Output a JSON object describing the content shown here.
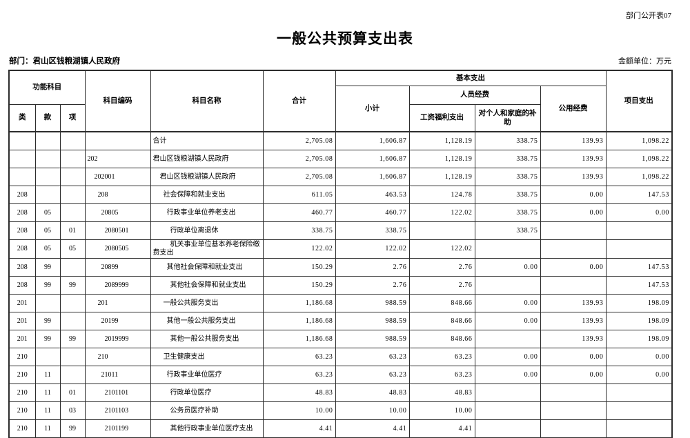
{
  "page": {
    "doc_label": "部门公开表07",
    "title": "一般公共预算支出表",
    "department_label": "部门：君山区钱粮湖镇人民政府",
    "unit_label": "金额单位：万元"
  },
  "colors": {
    "background": "#ffffff",
    "border": "#2c2c2c",
    "text": "#000000"
  },
  "table": {
    "headers": {
      "functional_subject": "功能科目",
      "lei": "类",
      "kuan": "款",
      "xiang": "项",
      "subject_code": "科目编码",
      "subject_name": "科目名称",
      "total": "合计",
      "basic_expenditure": "基本支出",
      "subtotal": "小计",
      "personnel_funds": "人员经费",
      "wage_welfare": "工资福利支出",
      "individual_family": "对个人和家庭的补助",
      "public_funds": "公用经费",
      "project_expenditure": "项目支出"
    },
    "rows": [
      {
        "lei": "",
        "kuan": "",
        "xiang": "",
        "code": "",
        "level": 0,
        "name": "合计",
        "total": "2,705.08",
        "subtotal": "1,606.87",
        "wage": "1,128.19",
        "family": "338.75",
        "public": "139.93",
        "project": "1,098.22"
      },
      {
        "lei": "",
        "kuan": "",
        "xiang": "",
        "code": "202",
        "level": 0,
        "name": "君山区钱粮湖镇人民政府",
        "total": "2,705.08",
        "subtotal": "1,606.87",
        "wage": "1,128.19",
        "family": "338.75",
        "public": "139.93",
        "project": "1,098.22"
      },
      {
        "lei": "",
        "kuan": "",
        "xiang": "",
        "code": "202001",
        "level": 1,
        "name": "君山区钱粮湖镇人民政府",
        "total": "2,705.08",
        "subtotal": "1,606.87",
        "wage": "1,128.19",
        "family": "338.75",
        "public": "139.93",
        "project": "1,098.22"
      },
      {
        "lei": "208",
        "kuan": "",
        "xiang": "",
        "code": "208",
        "level": 2,
        "name": "社会保障和就业支出",
        "total": "611.05",
        "subtotal": "463.53",
        "wage": "124.78",
        "family": "338.75",
        "public": "0.00",
        "project": "147.53"
      },
      {
        "lei": "208",
        "kuan": "05",
        "xiang": "",
        "code": "20805",
        "level": 3,
        "name": "行政事业单位养老支出",
        "total": "460.77",
        "subtotal": "460.77",
        "wage": "122.02",
        "family": "338.75",
        "public": "0.00",
        "project": "0.00"
      },
      {
        "lei": "208",
        "kuan": "05",
        "xiang": "01",
        "code": "2080501",
        "level": 4,
        "name": "行政单位离退休",
        "total": "338.75",
        "subtotal": "338.75",
        "wage": "",
        "family": "338.75",
        "public": "",
        "project": ""
      },
      {
        "lei": "208",
        "kuan": "05",
        "xiang": "05",
        "code": "2080505",
        "level": 4,
        "name": "机关事业单位基本养老保险缴费支出",
        "total": "122.02",
        "subtotal": "122.02",
        "wage": "122.02",
        "family": "",
        "public": "",
        "project": ""
      },
      {
        "lei": "208",
        "kuan": "99",
        "xiang": "",
        "code": "20899",
        "level": 3,
        "name": "其他社会保障和就业支出",
        "total": "150.29",
        "subtotal": "2.76",
        "wage": "2.76",
        "family": "0.00",
        "public": "0.00",
        "project": "147.53"
      },
      {
        "lei": "208",
        "kuan": "99",
        "xiang": "99",
        "code": "2089999",
        "level": 4,
        "name": "其他社会保障和就业支出",
        "total": "150.29",
        "subtotal": "2.76",
        "wage": "2.76",
        "family": "",
        "public": "",
        "project": "147.53"
      },
      {
        "lei": "201",
        "kuan": "",
        "xiang": "",
        "code": "201",
        "level": 2,
        "name": "一般公共服务支出",
        "total": "1,186.68",
        "subtotal": "988.59",
        "wage": "848.66",
        "family": "0.00",
        "public": "139.93",
        "project": "198.09"
      },
      {
        "lei": "201",
        "kuan": "99",
        "xiang": "",
        "code": "20199",
        "level": 3,
        "name": "其他一般公共服务支出",
        "total": "1,186.68",
        "subtotal": "988.59",
        "wage": "848.66",
        "family": "0.00",
        "public": "139.93",
        "project": "198.09"
      },
      {
        "lei": "201",
        "kuan": "99",
        "xiang": "99",
        "code": "2019999",
        "level": 4,
        "name": "其他一般公共服务支出",
        "total": "1,186.68",
        "subtotal": "988.59",
        "wage": "848.66",
        "family": "",
        "public": "139.93",
        "project": "198.09"
      },
      {
        "lei": "210",
        "kuan": "",
        "xiang": "",
        "code": "210",
        "level": 2,
        "name": "卫生健康支出",
        "total": "63.23",
        "subtotal": "63.23",
        "wage": "63.23",
        "family": "0.00",
        "public": "0.00",
        "project": "0.00"
      },
      {
        "lei": "210",
        "kuan": "11",
        "xiang": "",
        "code": "21011",
        "level": 3,
        "name": "行政事业单位医疗",
        "total": "63.23",
        "subtotal": "63.23",
        "wage": "63.23",
        "family": "0.00",
        "public": "0.00",
        "project": "0.00"
      },
      {
        "lei": "210",
        "kuan": "11",
        "xiang": "01",
        "code": "2101101",
        "level": 4,
        "name": "行政单位医疗",
        "total": "48.83",
        "subtotal": "48.83",
        "wage": "48.83",
        "family": "",
        "public": "",
        "project": ""
      },
      {
        "lei": "210",
        "kuan": "11",
        "xiang": "03",
        "code": "2101103",
        "level": 4,
        "name": "公务员医疗补助",
        "total": "10.00",
        "subtotal": "10.00",
        "wage": "10.00",
        "family": "",
        "public": "",
        "project": ""
      },
      {
        "lei": "210",
        "kuan": "11",
        "xiang": "99",
        "code": "2101199",
        "level": 4,
        "name": "其他行政事业单位医疗支出",
        "total": "4.41",
        "subtotal": "4.41",
        "wage": "4.41",
        "family": "",
        "public": "",
        "project": ""
      }
    ]
  }
}
